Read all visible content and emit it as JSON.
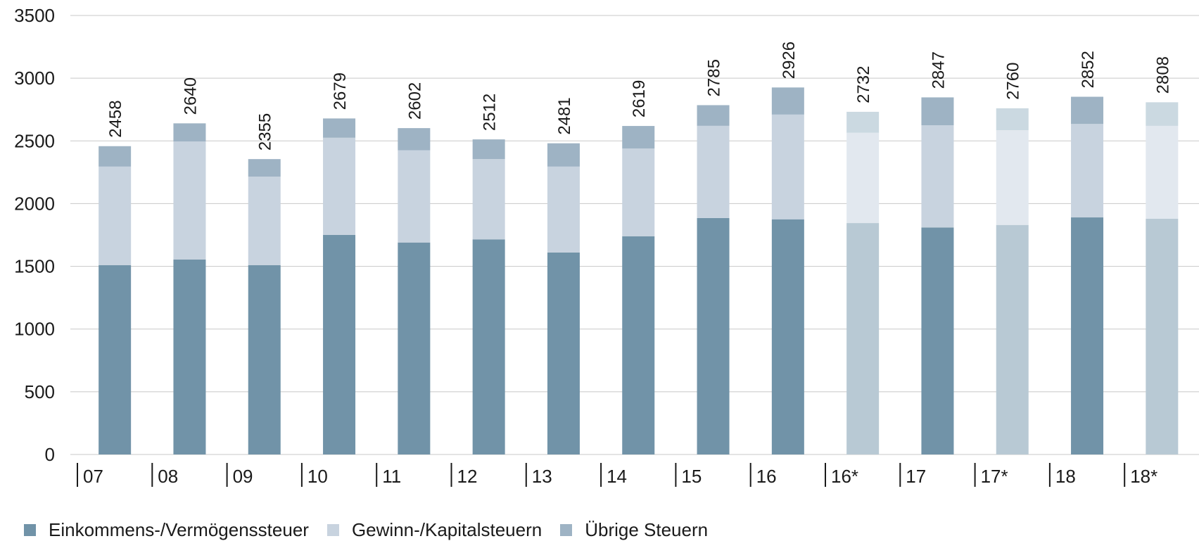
{
  "chart_data": {
    "type": "bar",
    "stacked": true,
    "categories": [
      "07",
      "08",
      "09",
      "10",
      "11",
      "12",
      "13",
      "14",
      "15",
      "16",
      "16*",
      "17",
      "17*",
      "18",
      "18*"
    ],
    "projected_categories": [
      "16*",
      "17*",
      "18*"
    ],
    "series": [
      {
        "name": "Einkommens-/Vermögenssteuer",
        "color": "#7193a8",
        "values": [
          1510,
          1555,
          1510,
          1750,
          1690,
          1715,
          1610,
          1740,
          1885,
          1875,
          1845,
          1810,
          1830,
          1890,
          1880
        ]
      },
      {
        "name": "Gewinn-/Kapitalsteuern",
        "color": "#c8d3df",
        "values": [
          785,
          940,
          705,
          775,
          735,
          640,
          685,
          700,
          735,
          835,
          720,
          815,
          755,
          745,
          740
        ]
      },
      {
        "name": "Übrige Steuern",
        "color": "#9eb3c4",
        "values": [
          163,
          145,
          140,
          154,
          177,
          157,
          186,
          179,
          165,
          216,
          167,
          222,
          175,
          217,
          188
        ]
      }
    ],
    "totals": [
      2458,
      2640,
      2355,
      2679,
      2602,
      2512,
      2481,
      2619,
      2785,
      2926,
      2732,
      2847,
      2760,
      2852,
      2808
    ],
    "yticks": [
      0,
      500,
      1000,
      1500,
      2000,
      2500,
      3000,
      3500
    ],
    "ylim": [
      0,
      3500
    ],
    "title": "",
    "xlabel": "",
    "ylabel": "",
    "grid": true,
    "legend_position": "bottom-left",
    "projected_colors": [
      "#b8c9d4",
      "#e2e8ef",
      "#cbd9e1"
    ]
  }
}
